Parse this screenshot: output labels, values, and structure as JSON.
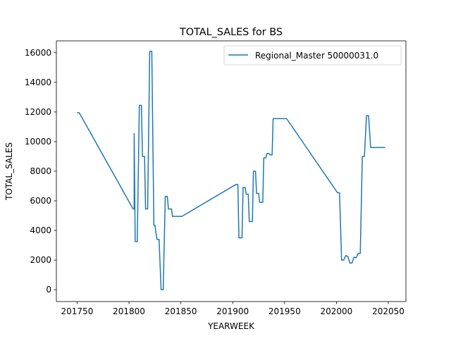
{
  "chart_data": {
    "type": "line",
    "title": "TOTAL_SALES for BS",
    "xlabel": "YEARWEEK",
    "ylabel": "TOTAL_SALES",
    "xlim": [
      201730,
      202067
    ],
    "ylim": [
      -800,
      16800
    ],
    "x_ticks": [
      201750,
      201800,
      201850,
      201900,
      201950,
      202000,
      202050
    ],
    "y_ticks": [
      0,
      2000,
      4000,
      6000,
      8000,
      10000,
      12000,
      14000,
      16000
    ],
    "grid": false,
    "legend_position": "top-right",
    "series": [
      {
        "name": "Regional_Master 50000031.0",
        "color": "#1f77b4",
        "x": [
          201750,
          201752,
          201804,
          201805,
          201805,
          201806,
          201808,
          201810,
          201812,
          201813,
          201815,
          201816,
          201818,
          201820,
          201822,
          201824,
          201825,
          201827,
          201829,
          201831,
          201833,
          201835,
          201837,
          201838,
          201840,
          201841,
          201842,
          201844,
          201845,
          201847,
          201848,
          201849,
          201851,
          201903,
          201905,
          201906,
          201908,
          201909,
          201910,
          201911,
          201912,
          201913,
          201914,
          201915,
          201916,
          201917,
          201918,
          201919,
          201920,
          201921,
          201922,
          201923,
          201924,
          201925,
          201926,
          201927,
          201928,
          201929,
          201930,
          201931,
          201932,
          201933,
          201934,
          201935,
          201936,
          201937,
          201938,
          201939,
          201940,
          201941,
          201942,
          201943,
          201944,
          201945,
          201946,
          201947,
          201948,
          201949,
          201950,
          201951,
          201952,
          202001,
          202003,
          202005,
          202007,
          202009,
          202011,
          202013,
          202015,
          202017,
          202019,
          202021,
          202023,
          202025,
          202027,
          202029,
          202031,
          202033,
          202035,
          202037,
          202039,
          202041,
          202043,
          202045,
          202047
        ],
        "y": [
          11950,
          11950,
          5450,
          5450,
          10550,
          3250,
          3250,
          12450,
          12450,
          9000,
          9000,
          5450,
          5450,
          16100,
          16100,
          4350,
          4350,
          3400,
          3400,
          0,
          0,
          6300,
          6300,
          5450,
          5450,
          5450,
          4950,
          4950,
          4950,
          4950,
          4950,
          4950,
          4950,
          7100,
          7100,
          3500,
          3500,
          3500,
          6900,
          6900,
          6900,
          6450,
          6450,
          6450,
          4600,
          4600,
          4600,
          4600,
          8000,
          8000,
          8000,
          6500,
          6500,
          6500,
          5900,
          5900,
          5900,
          5900,
          8900,
          8900,
          8900,
          9200,
          9200,
          9200,
          9100,
          9100,
          9100,
          11550,
          11550,
          11550,
          11550,
          11550,
          11550,
          11550,
          11550,
          11550,
          11550,
          11550,
          11550,
          11550,
          11550,
          6550,
          6550,
          2000,
          2000,
          2300,
          2250,
          1800,
          1800,
          2200,
          2150,
          2450,
          2450,
          9000,
          9000,
          11750,
          11750,
          9600,
          9600,
          9600,
          9600,
          9600,
          9600,
          9600,
          9600
        ]
      }
    ]
  }
}
